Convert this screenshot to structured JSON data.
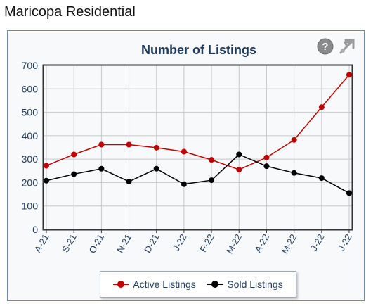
{
  "page": {
    "title": "Maricopa Residential"
  },
  "icons": {
    "help": "help-icon",
    "expand": "expand-icon"
  },
  "colors": {
    "active": "#c00000",
    "sold": "#000000",
    "title": "#1f3b5a"
  },
  "chart_data": {
    "type": "line",
    "title": "Number of Listings",
    "categories": [
      "A-21",
      "S-21",
      "O-21",
      "N-21",
      "D-21",
      "J-22",
      "F-22",
      "M-22",
      "A-22",
      "M-22",
      "J-22",
      "J-22"
    ],
    "series": [
      {
        "name": "Active Listings",
        "color": "#c00000",
        "values": [
          272,
          320,
          362,
          362,
          349,
          332,
          297,
          255,
          307,
          382,
          522,
          660
        ]
      },
      {
        "name": "Sold Listings",
        "color": "#000000",
        "values": [
          208,
          236,
          259,
          204,
          259,
          193,
          210,
          320,
          270,
          241,
          219,
          155
        ]
      }
    ],
    "ylim": [
      0,
      700
    ],
    "yticks": [
      0,
      100,
      200,
      300,
      400,
      500,
      600,
      700
    ],
    "grid": true,
    "legend": "bottom"
  }
}
